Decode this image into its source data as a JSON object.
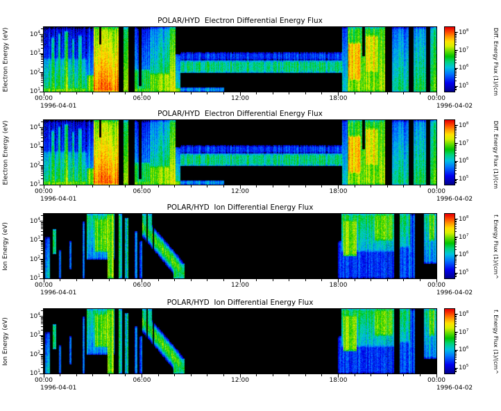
{
  "panels": [
    {
      "title": "POLAR/HYD  Electron Differential Energy Flux",
      "ylabel": "Electron Energy (eV)",
      "colorbar_label": "Diff. Energy Flux (1)/(cm",
      "spectrum": "electron"
    },
    {
      "title": "POLAR/HYD  Electron Differential Energy Flux",
      "ylabel": "Electron Energy (eV)",
      "colorbar_label": "Diff. Energy Flux (1)/(cm",
      "spectrum": "electron"
    },
    {
      "title": "POLAR/HYD  Ion Differential Energy Flux",
      "ylabel": "Ion Energy (eV)",
      "colorbar_label": "f. Energy Flux (1)/(cm^",
      "spectrum": "ion"
    },
    {
      "title": "POLAR/HYD  Ion Differential Energy Flux",
      "ylabel": "Ion Energy (eV)",
      "colorbar_label": "f. Energy Flux (1)/(cm^",
      "spectrum": "ion"
    }
  ],
  "axes": {
    "x_tick_labels": [
      "00:00",
      "06:00",
      "12:00",
      "18:00",
      "00:00"
    ],
    "date_left": "1996-04-01",
    "date_right": "1996-04-02",
    "y_tick_exponents": [
      1,
      2,
      3,
      4
    ],
    "colorbar_tick_exponents": [
      5,
      6,
      7,
      8
    ]
  },
  "chart_data": {
    "type": "heatmap",
    "panel_series": [
      "electron",
      "electron",
      "ion",
      "ion"
    ],
    "x": {
      "units": "time of day (UT)",
      "ticks_hours": [
        0,
        6,
        12,
        18,
        24
      ],
      "tick_labels": [
        "00:00",
        "06:00",
        "12:00",
        "18:00",
        "00:00"
      ],
      "date_start": "1996-04-01",
      "date_end": "1996-04-02"
    },
    "y": {
      "scale": "log",
      "range_log10_eV": [
        1.0,
        4.4
      ],
      "tick_exponents": [
        1,
        2,
        3,
        4
      ]
    },
    "flux": {
      "scale": "log",
      "range_log10": [
        4.7,
        8.3
      ],
      "tick_exponents": [
        5,
        6,
        7,
        8
      ]
    },
    "colormap": {
      "stops": [
        [
          0.0,
          "#000085"
        ],
        [
          0.14,
          "#0000f0"
        ],
        [
          0.28,
          "#0077ff"
        ],
        [
          0.38,
          "#00c4e0"
        ],
        [
          0.47,
          "#00d37a"
        ],
        [
          0.55,
          "#00c400"
        ],
        [
          0.63,
          "#63dc00"
        ],
        [
          0.71,
          "#d8f000"
        ],
        [
          0.78,
          "#ffe400"
        ],
        [
          0.85,
          "#ffa000"
        ],
        [
          0.92,
          "#ff5000"
        ],
        [
          1.0,
          "#e80000"
        ]
      ]
    },
    "spectrograms": {
      "electron": {
        "features": [
          {
            "type": "patch",
            "t0": 0.0,
            "t1": 2.6,
            "e0": 1.0,
            "e1": 4.4,
            "flux": 5.7,
            "top": 5.1
          },
          {
            "type": "patch",
            "t0": 0.0,
            "t1": 2.6,
            "e0": 1.0,
            "e1": 2.8,
            "flux": 6.5,
            "top": 5.9
          },
          {
            "type": "patch",
            "t0": 0.45,
            "t1": 0.6,
            "e0": 1.0,
            "e1": 3.9,
            "flux": 6.9,
            "top": 6.1
          },
          {
            "type": "patch",
            "t0": 0.85,
            "t1": 1.0,
            "e0": 1.0,
            "e1": 4.1,
            "flux": 6.8,
            "top": 6.0
          },
          {
            "type": "patch",
            "t0": 1.25,
            "t1": 1.45,
            "e0": 1.0,
            "e1": 4.2,
            "flux": 7.0,
            "top": 6.2
          },
          {
            "type": "patch",
            "t0": 1.7,
            "t1": 1.85,
            "e0": 1.0,
            "e1": 3.8,
            "flux": 6.8,
            "top": 6.0
          },
          {
            "type": "patch",
            "t0": 2.1,
            "t1": 2.3,
            "e0": 1.0,
            "e1": 4.0,
            "flux": 6.9,
            "top": 6.1
          },
          {
            "type": "patch",
            "t0": 2.6,
            "t1": 3.05,
            "e0": 1.0,
            "e1": 4.4,
            "flux": 6.2,
            "top": 5.2
          },
          {
            "type": "patch",
            "t0": 2.6,
            "t1": 3.05,
            "e0": 1.0,
            "e1": 1.9,
            "flux": 7.0
          },
          {
            "type": "patch",
            "t0": 3.05,
            "t1": 4.55,
            "e0": 1.0,
            "e1": 4.4,
            "flux": 7.7,
            "bot": 7.9,
            "top": 7.0
          },
          {
            "type": "patch",
            "t0": 0.0,
            "t1": 8.35,
            "e0": 1.0,
            "e1": 1.2,
            "flux": 7.1
          },
          {
            "type": "gap",
            "t0": 3.38,
            "t1": 3.5,
            "e0": 3.5,
            "e1": 4.4
          },
          {
            "type": "gap",
            "t0": 4.55,
            "t1": 4.85,
            "e0": 1.0,
            "e1": 4.4
          },
          {
            "type": "patch",
            "t0": 4.85,
            "t1": 5.15,
            "e0": 1.0,
            "e1": 4.4,
            "flux": 7.4,
            "top": 6.6
          },
          {
            "type": "gap",
            "t0": 5.15,
            "t1": 5.55,
            "e0": 1.0,
            "e1": 4.4
          },
          {
            "type": "patch",
            "t0": 5.55,
            "t1": 6.45,
            "e0": 1.0,
            "e1": 4.4,
            "flux": 6.1,
            "top": 5.3
          },
          {
            "type": "patch",
            "t0": 5.55,
            "t1": 6.45,
            "e0": 1.0,
            "e1": 2.2,
            "flux": 6.6
          },
          {
            "type": "gap",
            "t0": 5.8,
            "t1": 5.95,
            "e0": 1.3,
            "e1": 4.4
          },
          {
            "type": "patch",
            "t0": 6.45,
            "t1": 7.65,
            "e0": 1.0,
            "e1": 4.4,
            "flux": 6.6,
            "top": 5.8
          },
          {
            "type": "patch",
            "t0": 6.45,
            "t1": 7.65,
            "e0": 1.0,
            "e1": 2.0,
            "flux": 7.0
          },
          {
            "type": "patch",
            "t0": 7.65,
            "t1": 8.05,
            "e0": 1.0,
            "e1": 4.4,
            "flux": 7.3,
            "top": 6.5
          },
          {
            "type": "patch",
            "t0": 8.05,
            "t1": 8.35,
            "e0": 1.0,
            "e1": 3.0,
            "flux": 6.3,
            "top": 5.5
          },
          {
            "type": "patch",
            "t0": 8.35,
            "t1": 18.2,
            "e0": 2.0,
            "e1": 2.65,
            "flux": 6.35
          },
          {
            "type": "patch",
            "t0": 8.35,
            "t1": 18.2,
            "e0": 2.65,
            "e1": 3.1,
            "flux": 5.4
          },
          {
            "type": "patch",
            "t0": 8.35,
            "t1": 11.0,
            "e0": 1.0,
            "e1": 1.25,
            "flux": 5.9
          },
          {
            "type": "patch",
            "t0": 18.2,
            "t1": 18.55,
            "e0": 1.0,
            "e1": 4.4,
            "flux": 6.3,
            "top": 5.5
          },
          {
            "type": "patch",
            "t0": 18.55,
            "t1": 20.85,
            "e0": 1.0,
            "e1": 4.4,
            "flux": 7.1,
            "top": 6.7
          },
          {
            "type": "patch",
            "t0": 18.6,
            "t1": 19.35,
            "e0": 1.6,
            "e1": 3.6,
            "flux": 7.6
          },
          {
            "type": "gap",
            "t0": 19.45,
            "t1": 19.62,
            "e0": 2.9,
            "e1": 4.4
          },
          {
            "type": "patch",
            "t0": 19.65,
            "t1": 20.4,
            "e0": 2.0,
            "e1": 4.0,
            "flux": 7.4
          },
          {
            "type": "gap",
            "t0": 20.85,
            "t1": 21.25,
            "e0": 1.0,
            "e1": 4.4
          },
          {
            "type": "patch",
            "t0": 21.25,
            "t1": 22.3,
            "e0": 1.0,
            "e1": 4.4,
            "flux": 6.4,
            "top": 5.6
          },
          {
            "type": "gap",
            "t0": 22.3,
            "t1": 22.6,
            "e0": 1.0,
            "e1": 4.4
          },
          {
            "type": "patch",
            "t0": 22.6,
            "t1": 23.35,
            "e0": 1.0,
            "e1": 4.4,
            "flux": 6.6,
            "top": 5.8
          },
          {
            "type": "gap",
            "t0": 23.35,
            "t1": 23.6,
            "e0": 1.0,
            "e1": 4.4
          },
          {
            "type": "patch",
            "t0": 23.6,
            "t1": 24.0,
            "e0": 1.0,
            "e1": 4.4,
            "flux": 6.9,
            "top": 6.2
          }
        ]
      },
      "ion": {
        "features": [
          {
            "type": "patch",
            "t0": 0.05,
            "t1": 0.35,
            "e0": 1.0,
            "e1": 3.2,
            "flux": 6.1,
            "top": 5.3
          },
          {
            "type": "patch",
            "t0": 0.55,
            "t1": 0.75,
            "e0": 2.3,
            "e1": 3.6,
            "flux": 6.3
          },
          {
            "type": "patch",
            "t0": 0.9,
            "t1": 1.05,
            "e0": 1.0,
            "e1": 2.5,
            "flux": 5.6
          },
          {
            "type": "patch",
            "t0": 1.55,
            "t1": 1.68,
            "e0": 1.5,
            "e1": 3.0,
            "flux": 5.5
          },
          {
            "type": "patch",
            "t0": 2.35,
            "t1": 2.5,
            "e0": 1.0,
            "e1": 4.0,
            "flux": 5.8
          },
          {
            "type": "patch",
            "t0": 2.6,
            "t1": 4.3,
            "e0": 2.0,
            "e1": 4.4,
            "flux": 6.5,
            "bot": 5.8
          },
          {
            "type": "patch",
            "t0": 3.1,
            "t1": 4.25,
            "e0": 2.4,
            "e1": 4.2,
            "flux": 6.9
          },
          {
            "type": "patch",
            "t0": 3.9,
            "t1": 4.25,
            "e0": 1.0,
            "e1": 4.4,
            "flux": 7.0
          },
          {
            "type": "gap",
            "t0": 4.3,
            "t1": 4.55,
            "e0": 1.0,
            "e1": 4.4
          },
          {
            "type": "patch",
            "t0": 4.55,
            "t1": 4.75,
            "e0": 1.0,
            "e1": 4.4,
            "flux": 6.3
          },
          {
            "type": "gap",
            "t0": 4.75,
            "t1": 4.95,
            "e0": 1.0,
            "e1": 4.4
          },
          {
            "type": "patch",
            "t0": 4.95,
            "t1": 5.15,
            "e0": 1.0,
            "e1": 4.2,
            "flux": 6.1
          },
          {
            "type": "patch",
            "t0": 5.55,
            "t1": 5.7,
            "e0": 1.0,
            "e1": 3.5,
            "flux": 5.6
          },
          {
            "type": "patch",
            "t0": 5.85,
            "t1": 6.0,
            "e0": 1.0,
            "e1": 3.0,
            "flux": 5.5
          },
          {
            "type": "patch",
            "t0": 6.0,
            "t1": 6.6,
            "e0": 3.3,
            "e1": 4.4,
            "flux": 6.4
          },
          {
            "type": "dispersion",
            "t0": 6.0,
            "t1": 8.6,
            "c0": 3.8,
            "c1": 1.2,
            "w": 0.55,
            "flux": 6.8
          },
          {
            "type": "gap",
            "t0": 6.25,
            "t1": 6.35,
            "e0": 1.0,
            "e1": 4.4
          },
          {
            "type": "gap",
            "t0": 6.62,
            "t1": 6.72,
            "e0": 1.0,
            "e1": 4.4
          },
          {
            "type": "patch",
            "t0": 7.9,
            "t1": 8.6,
            "e0": 1.0,
            "e1": 1.8,
            "flux": 6.5
          },
          {
            "type": "patch",
            "t0": 17.95,
            "t1": 18.15,
            "e0": 1.0,
            "e1": 3.0,
            "flux": 5.4
          },
          {
            "type": "patch",
            "t0": 18.15,
            "t1": 21.4,
            "e0": 1.0,
            "e1": 4.4,
            "flux": 5.4
          },
          {
            "type": "patch",
            "t0": 18.15,
            "t1": 21.4,
            "e0": 2.4,
            "e1": 4.4,
            "flux": 6.6,
            "bot": 6.0
          },
          {
            "type": "patch",
            "t0": 18.3,
            "t1": 19.1,
            "e0": 2.2,
            "e1": 4.1,
            "flux": 7.0
          },
          {
            "type": "patch",
            "t0": 20.2,
            "t1": 21.3,
            "e0": 3.0,
            "e1": 4.4,
            "flux": 6.9
          },
          {
            "type": "gap",
            "t0": 21.4,
            "t1": 21.75,
            "e0": 1.0,
            "e1": 4.4
          },
          {
            "type": "patch",
            "t0": 21.75,
            "t1": 22.35,
            "e0": 1.0,
            "e1": 4.4,
            "flux": 5.5
          },
          {
            "type": "patch",
            "t0": 21.75,
            "t1": 22.35,
            "e0": 2.6,
            "e1": 4.4,
            "flux": 6.5,
            "bot": 6.0
          },
          {
            "type": "patch",
            "t0": 22.35,
            "t1": 22.65,
            "e0": 1.0,
            "e1": 4.4,
            "flux": 5.6
          },
          {
            "type": "gap",
            "t0": 22.65,
            "t1": 23.2,
            "e0": 1.0,
            "e1": 4.4
          },
          {
            "type": "patch",
            "t0": 23.2,
            "t1": 24.0,
            "e0": 1.8,
            "e1": 4.4,
            "flux": 6.4,
            "bot": 5.7
          },
          {
            "type": "patch",
            "t0": 23.55,
            "t1": 23.85,
            "e0": 3.0,
            "e1": 4.4,
            "flux": 6.9
          }
        ]
      }
    }
  }
}
